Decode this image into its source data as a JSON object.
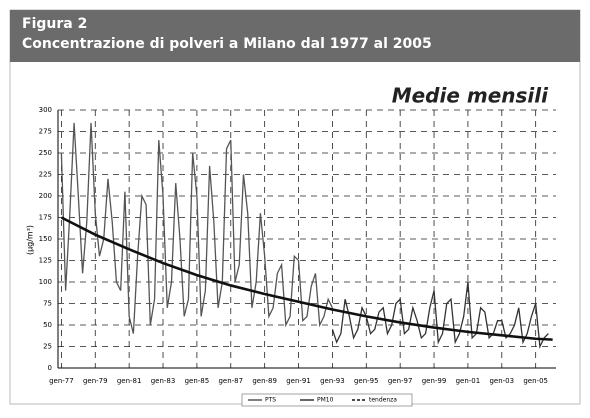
{
  "header": {
    "figure": "Figura 2",
    "title": "Concentrazione di polveri a Milano dal 1977 al 2005"
  },
  "chart_data": {
    "type": "line",
    "annotation": "Medie mensili",
    "y_label": "(µg/m³)",
    "xlim": [
      1976.8,
      2006.2
    ],
    "ylim": [
      0,
      300
    ],
    "yticks": [
      0,
      25,
      50,
      75,
      100,
      125,
      150,
      175,
      200,
      225,
      250,
      275,
      300
    ],
    "xticks": [
      {
        "value": 1977,
        "label": "gen-77"
      },
      {
        "value": 1979,
        "label": "gen-79"
      },
      {
        "value": 1981,
        "label": "gen-81"
      },
      {
        "value": 1983,
        "label": "gen-83"
      },
      {
        "value": 1985,
        "label": "gen-85"
      },
      {
        "value": 1987,
        "label": "gen-87"
      },
      {
        "value": 1989,
        "label": "gen-89"
      },
      {
        "value": 1991,
        "label": "gen-91"
      },
      {
        "value": 1993,
        "label": "gen-93"
      },
      {
        "value": 1995,
        "label": "gen-95"
      },
      {
        "value": 1997,
        "label": "gen-97"
      },
      {
        "value": 1999,
        "label": "gen-99"
      },
      {
        "value": 2001,
        "label": "gen-01"
      },
      {
        "value": 2003,
        "label": "gen-03"
      },
      {
        "value": 2005,
        "label": "gen-05"
      }
    ],
    "grid": true,
    "series": [
      {
        "name": "PTS",
        "color": "#555555",
        "width": 1.3,
        "x": [
          1977,
          1977.25,
          1977.5,
          1977.75,
          1978,
          1978.25,
          1978.5,
          1978.75,
          1979,
          1979.25,
          1979.5,
          1979.75,
          1980,
          1980.25,
          1980.5,
          1980.75,
          1981,
          1981.25,
          1981.5,
          1981.75,
          1982,
          1982.25,
          1982.5,
          1982.75,
          1983,
          1983.25,
          1983.5,
          1983.75,
          1984,
          1984.25,
          1984.5,
          1984.75,
          1985,
          1985.25,
          1985.5,
          1985.75,
          1986,
          1986.25,
          1986.5,
          1986.75,
          1987,
          1987.25,
          1987.5,
          1987.75,
          1988,
          1988.25,
          1988.5,
          1988.75,
          1989,
          1989.25,
          1989.5,
          1989.75,
          1990,
          1990.25,
          1990.5,
          1990.75,
          1991,
          1991.25,
          1991.5,
          1991.75,
          1992,
          1992.25,
          1992.5,
          1992.75,
          1993
        ],
        "values": [
          250,
          90,
          180,
          285,
          200,
          110,
          170,
          285,
          180,
          130,
          150,
          220,
          170,
          100,
          90,
          205,
          60,
          40,
          130,
          200,
          190,
          50,
          80,
          265,
          200,
          70,
          100,
          215,
          150,
          60,
          80,
          250,
          200,
          60,
          90,
          235,
          170,
          70,
          100,
          255,
          265,
          100,
          120,
          225,
          180,
          70,
          100,
          180,
          130,
          60,
          70,
          110,
          120,
          50,
          60,
          130,
          125,
          55,
          60,
          95,
          110,
          50,
          60,
          80,
          70
        ]
      },
      {
        "name": "PM10",
        "color": "#333333",
        "width": 1.3,
        "x": [
          1993,
          1993.25,
          1993.5,
          1993.75,
          1994,
          1994.25,
          1994.5,
          1994.75,
          1995,
          1995.25,
          1995.5,
          1995.75,
          1996,
          1996.25,
          1996.5,
          1996.75,
          1997,
          1997.25,
          1997.5,
          1997.75,
          1998,
          1998.25,
          1998.5,
          1998.75,
          1999,
          1999.25,
          1999.5,
          1999.75,
          2000,
          2000.25,
          2000.5,
          2000.75,
          2001,
          2001.25,
          2001.5,
          2001.75,
          2002,
          2002.25,
          2002.5,
          2002.75,
          2003,
          2003.25,
          2003.5,
          2003.75,
          2004,
          2004.25,
          2004.5,
          2004.75,
          2005,
          2005.25,
          2005.5,
          2005.75
        ],
        "values": [
          45,
          30,
          40,
          80,
          60,
          35,
          45,
          70,
          60,
          40,
          45,
          65,
          70,
          40,
          50,
          75,
          80,
          40,
          45,
          70,
          55,
          35,
          40,
          70,
          90,
          30,
          40,
          75,
          80,
          30,
          40,
          60,
          100,
          35,
          40,
          70,
          65,
          35,
          40,
          55,
          55,
          35,
          40,
          50,
          70,
          30,
          40,
          60,
          75,
          25,
          35,
          40
        ]
      },
      {
        "name": "tendenza",
        "color": "#111111",
        "width": 2.6,
        "x": [
          1977,
          1979,
          1981,
          1983,
          1985,
          1987,
          1989,
          1991,
          1993,
          1995,
          1997,
          1999,
          2001,
          2003,
          2005,
          2006
        ],
        "values": [
          175,
          155,
          138,
          122,
          108,
          96,
          86,
          77,
          68,
          60,
          53,
          47,
          42,
          38,
          34,
          33
        ]
      }
    ]
  }
}
